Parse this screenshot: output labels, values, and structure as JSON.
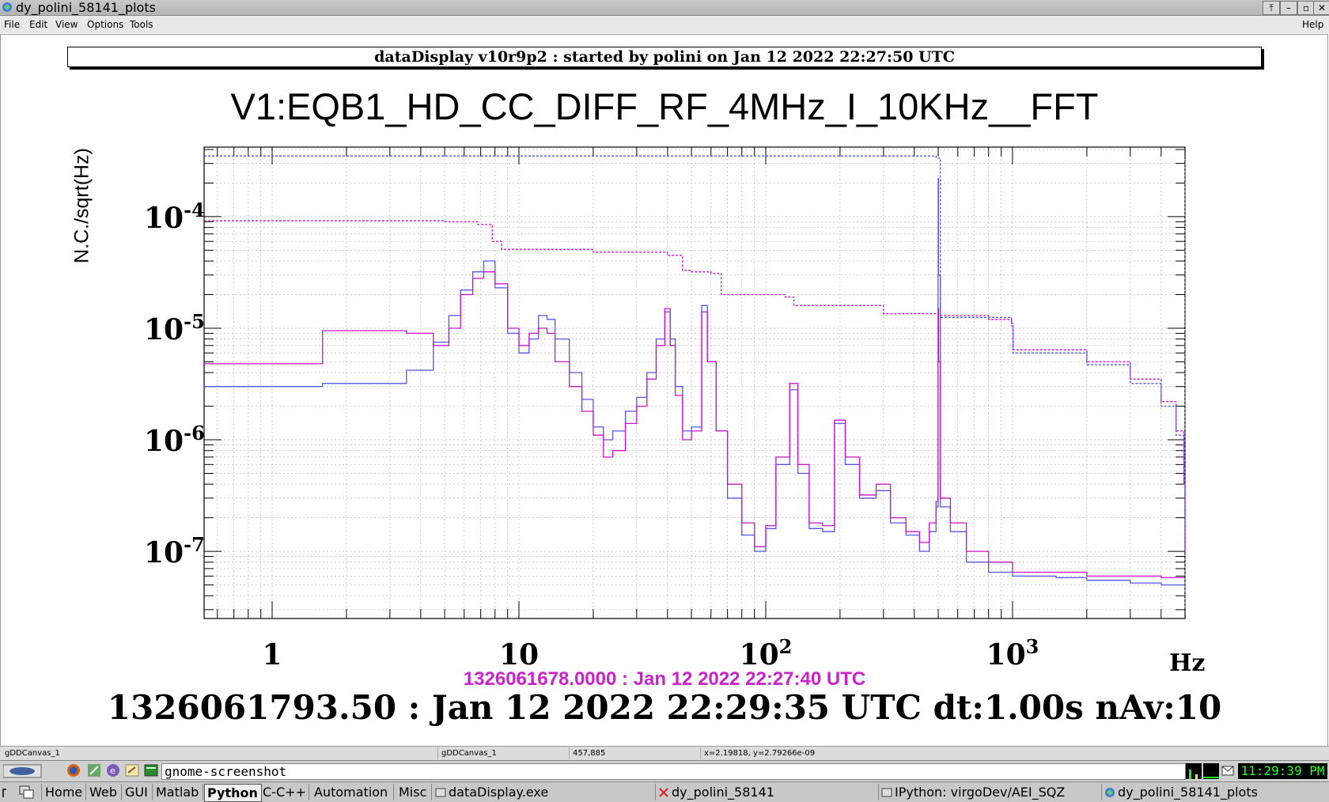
{
  "window": {
    "title": "dy_polini_58141_plots",
    "controls": [
      "⤒",
      "–",
      "▫",
      "✕"
    ]
  },
  "menubar": {
    "items": [
      "File",
      "Edit",
      "View",
      "Options",
      "Tools"
    ],
    "help": "Help"
  },
  "header": "dataDisplay v10r9p2 : started by polini on Jan 12 2022 22:27:50 UTC",
  "chart_data": {
    "type": "line",
    "title": "V1:EQB1_HD_CC_DIFF_RF_4MHz_I_10KHz__FFT",
    "ylabel": "N.C./sqrt(Hz)",
    "xlabel": "Hz",
    "xscale": "log",
    "yscale": "log",
    "xlim": [
      0.53,
      5000
    ],
    "ylim": [
      2.5e-08,
      0.00042
    ],
    "grid": true,
    "x_ticks": [
      {
        "base": "1",
        "exp": ""
      },
      {
        "base": "10",
        "exp": ""
      },
      {
        "base": "10",
        "exp": "2"
      },
      {
        "base": "10",
        "exp": "3"
      }
    ],
    "y_ticks": [
      {
        "base": "10",
        "exp": "-4"
      },
      {
        "base": "10",
        "exp": "-5"
      },
      {
        "base": "10",
        "exp": "-6"
      },
      {
        "base": "10",
        "exp": "-7"
      }
    ],
    "series": [
      {
        "color": "#5555ee",
        "style": "solid",
        "points": [
          [
            0.53,
            3e-06
          ],
          [
            1.6,
            3.2e-06
          ],
          [
            3.5,
            4.2e-06
          ],
          [
            4.5,
            7.5e-06
          ],
          [
            5.2,
            1.3e-05
          ],
          [
            5.8,
            2.2e-05
          ],
          [
            6.5,
            3.2e-05
          ],
          [
            7.2,
            4e-05
          ],
          [
            8.0,
            2.3e-05
          ],
          [
            9.0,
            9e-06
          ],
          [
            10,
            6e-06
          ],
          [
            11,
            8e-06
          ],
          [
            12,
            1.3e-05
          ],
          [
            13,
            1.2e-05
          ],
          [
            14,
            8e-06
          ],
          [
            16,
            4e-06
          ],
          [
            18,
            2.3e-06
          ],
          [
            20,
            1.3e-06
          ],
          [
            22,
            1e-06
          ],
          [
            24,
            1.2e-06
          ],
          [
            27,
            1.8e-06
          ],
          [
            30,
            2.4e-06
          ],
          [
            33,
            4e-06
          ],
          [
            36,
            8e-06
          ],
          [
            39,
            1.4e-05
          ],
          [
            41,
            8e-06
          ],
          [
            43,
            3e-06
          ],
          [
            46,
            1.2e-06
          ],
          [
            50,
            1.3e-06
          ],
          [
            55,
            1.6e-05
          ],
          [
            58,
            5e-06
          ],
          [
            63,
            1.2e-06
          ],
          [
            70,
            3e-07
          ],
          [
            80,
            1.4e-07
          ],
          [
            90,
            1e-07
          ],
          [
            100,
            1.6e-07
          ],
          [
            110,
            6e-07
          ],
          [
            125,
            2.8e-06
          ],
          [
            135,
            5e-07
          ],
          [
            150,
            1.6e-07
          ],
          [
            170,
            1.5e-07
          ],
          [
            190,
            1.4e-06
          ],
          [
            210,
            6e-07
          ],
          [
            240,
            3e-07
          ],
          [
            280,
            3.5e-07
          ],
          [
            320,
            1.8e-07
          ],
          [
            370,
            1.4e-07
          ],
          [
            420,
            1e-07
          ],
          [
            460,
            1.5e-07
          ],
          [
            490,
            2.5e-07
          ],
          [
            499,
            3e-05
          ],
          [
            500,
            0.00022
          ],
          [
            501,
            3e-05
          ],
          [
            510,
            2.5e-07
          ],
          [
            560,
            1.5e-07
          ],
          [
            650,
            8e-08
          ],
          [
            800,
            6.5e-08
          ],
          [
            1000,
            6e-08
          ],
          [
            1500,
            5.8e-08
          ],
          [
            2000,
            5.5e-08
          ],
          [
            3000,
            5.2e-08
          ],
          [
            4000,
            5e-08
          ],
          [
            5000,
            5e-08
          ]
        ]
      },
      {
        "color": "#cc11cc",
        "style": "solid",
        "points": [
          [
            0.53,
            4.8e-06
          ],
          [
            1.6,
            9.5e-06
          ],
          [
            3.5,
            9e-06
          ],
          [
            4.5,
            7e-06
          ],
          [
            5.2,
            1e-05
          ],
          [
            5.8,
            2e-05
          ],
          [
            6.5,
            2.8e-05
          ],
          [
            7.2,
            3.2e-05
          ],
          [
            8.0,
            2.5e-05
          ],
          [
            9.0,
            1e-05
          ],
          [
            10,
            7e-06
          ],
          [
            11,
            9e-06
          ],
          [
            12,
            1e-05
          ],
          [
            13,
            9e-06
          ],
          [
            14,
            5e-06
          ],
          [
            16,
            3e-06
          ],
          [
            18,
            1.8e-06
          ],
          [
            20,
            1.1e-06
          ],
          [
            22,
            7e-07
          ],
          [
            24,
            8e-07
          ],
          [
            27,
            1.4e-06
          ],
          [
            30,
            2e-06
          ],
          [
            33,
            3.5e-06
          ],
          [
            36,
            7e-06
          ],
          [
            39,
            1.5e-05
          ],
          [
            41,
            7e-06
          ],
          [
            43,
            2.5e-06
          ],
          [
            46,
            1e-06
          ],
          [
            50,
            1.2e-06
          ],
          [
            55,
            1.4e-05
          ],
          [
            58,
            5e-06
          ],
          [
            63,
            1.2e-06
          ],
          [
            70,
            4e-07
          ],
          [
            80,
            1.8e-07
          ],
          [
            90,
            1.1e-07
          ],
          [
            100,
            1.7e-07
          ],
          [
            110,
            7e-07
          ],
          [
            125,
            3.2e-06
          ],
          [
            135,
            6e-07
          ],
          [
            150,
            1.8e-07
          ],
          [
            170,
            1.7e-07
          ],
          [
            190,
            1.5e-06
          ],
          [
            210,
            7e-07
          ],
          [
            240,
            3.2e-07
          ],
          [
            280,
            4e-07
          ],
          [
            320,
            2e-07
          ],
          [
            370,
            1.5e-07
          ],
          [
            420,
            1.2e-07
          ],
          [
            460,
            1.8e-07
          ],
          [
            490,
            2.8e-07
          ],
          [
            499,
            5e-06
          ],
          [
            500,
            1.5e-05
          ],
          [
            501,
            5e-06
          ],
          [
            510,
            3e-07
          ],
          [
            560,
            1.8e-07
          ],
          [
            650,
            1e-07
          ],
          [
            800,
            8e-08
          ],
          [
            1000,
            6.5e-08
          ],
          [
            1500,
            6.5e-08
          ],
          [
            2000,
            6e-08
          ],
          [
            3000,
            6e-08
          ],
          [
            4000,
            5.8e-08
          ],
          [
            5000,
            5.8e-08
          ]
        ]
      },
      {
        "color": "#cc11cc",
        "style": "dashed",
        "points": [
          [
            0.53,
            9.2e-05
          ],
          [
            5,
            9e-05
          ],
          [
            6.8,
            8.5e-05
          ],
          [
            7.8,
            6e-05
          ],
          [
            8.5,
            5.1e-05
          ],
          [
            20,
            4.8e-05
          ],
          [
            40,
            4.5e-05
          ],
          [
            46,
            3.3e-05
          ],
          [
            50,
            3.2e-05
          ],
          [
            60,
            3.1e-05
          ],
          [
            66,
            2e-05
          ],
          [
            120,
            1.9e-05
          ],
          [
            130,
            1.6e-05
          ],
          [
            300,
            1.35e-05
          ],
          [
            500,
            1.3e-05
          ],
          [
            800,
            1.2e-05
          ],
          [
            990,
            1.1e-05
          ],
          [
            1005,
            6.4e-06
          ],
          [
            2000,
            5e-06
          ],
          [
            3000,
            3.5e-06
          ],
          [
            4000,
            2.2e-06
          ],
          [
            4600,
            1.2e-06
          ],
          [
            4950,
            4e-07
          ],
          [
            5000,
            1e-07
          ]
        ]
      },
      {
        "color": "#5555ee",
        "style": "dashed",
        "points": [
          [
            0.53,
            0.00035
          ],
          [
            490,
            0.000335
          ],
          [
            500,
            0.000335
          ],
          [
            510,
            1.25e-05
          ],
          [
            990,
            1.05e-05
          ],
          [
            1005,
            6e-06
          ],
          [
            2000,
            4.7e-06
          ],
          [
            3000,
            3.2e-06
          ],
          [
            4000,
            2e-06
          ],
          [
            4600,
            1.1e-06
          ],
          [
            4950,
            4e-07
          ],
          [
            5000,
            1e-07
          ]
        ]
      }
    ]
  },
  "timestamps": {
    "reference": "1326061678.0000 : Jan 12 2022 22:27:40 UTC",
    "current": "1326061793.50 : Jan 12 2022 22:29:35 UTC dt:1.00s nAv:10"
  },
  "statusbar": {
    "canvas1": "gDDCanvas_1",
    "canvas2": "gDDCanvas_1",
    "pixel": "457,885",
    "coords": "x=2.19818, y=2.79266e-09"
  },
  "launcher": {
    "command": "gnome-screenshot",
    "clock": "11:29:39 PM"
  },
  "taskbar": {
    "groups": [
      "Home",
      "Web",
      "GUI",
      "Matlab",
      "Python",
      "C-C++",
      "Automation",
      "Misc"
    ],
    "active_group": "Python",
    "windows": [
      "dataDisplay.exe",
      "dy_polini_58141",
      "IPython: virgoDev/AEI_SQZ",
      "dy_polini_58141_plots"
    ]
  }
}
